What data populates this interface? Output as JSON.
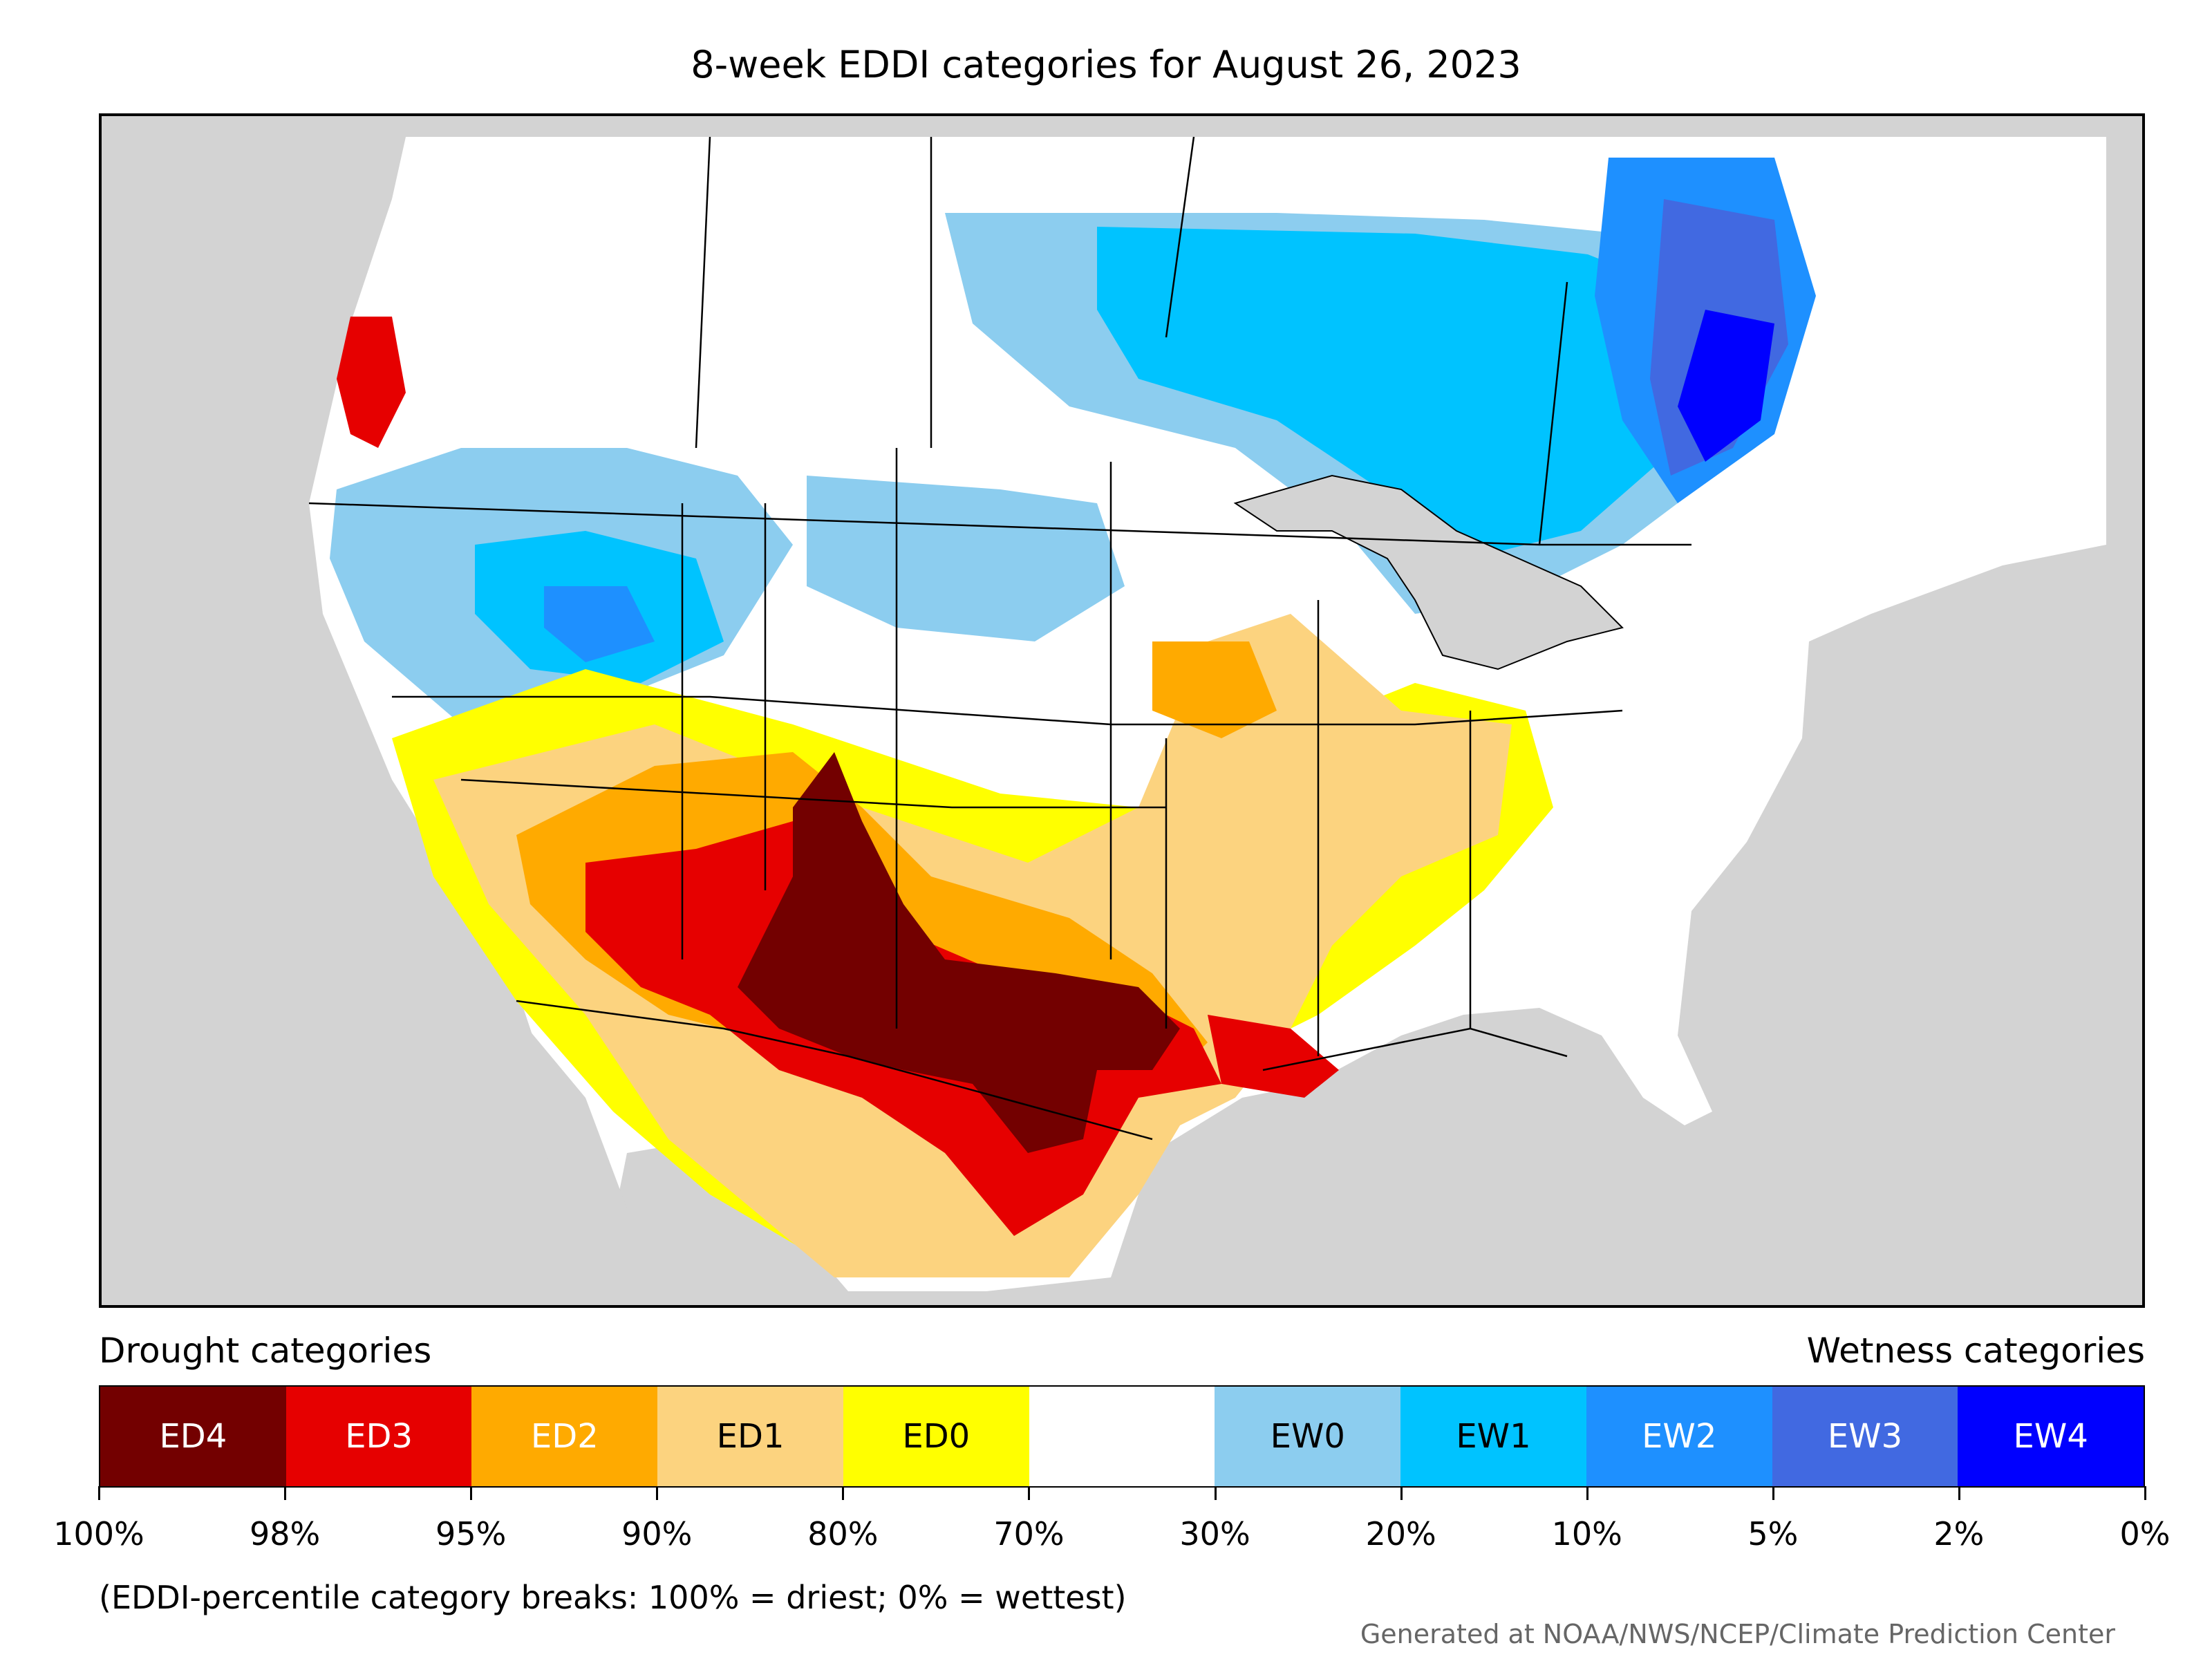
{
  "title": "8-week EDDI categories for August 26, 2023",
  "legend": {
    "drought_heading": "Drought categories",
    "wetness_heading": "Wetness categories",
    "categories": [
      {
        "label": "ED4",
        "color": "#730000",
        "text_color": "#ffffff"
      },
      {
        "label": "ED3",
        "color": "#e60000",
        "text_color": "#ffffff"
      },
      {
        "label": "ED2",
        "color": "#ffaa00",
        "text_color": "#ffffff"
      },
      {
        "label": "ED1",
        "color": "#fcd37f",
        "text_color": "#000000"
      },
      {
        "label": "ED0",
        "color": "#ffff00",
        "text_color": "#000000"
      },
      {
        "label": "",
        "color": "#ffffff",
        "text_color": "#000000"
      },
      {
        "label": "EW0",
        "color": "#8ccdef",
        "text_color": "#000000"
      },
      {
        "label": "EW1",
        "color": "#00c3ff",
        "text_color": "#000000"
      },
      {
        "label": "EW2",
        "color": "#1e90ff",
        "text_color": "#ffffff"
      },
      {
        "label": "EW3",
        "color": "#4169e1",
        "text_color": "#ffffff"
      },
      {
        "label": "EW4",
        "color": "#0000ff",
        "text_color": "#ffffff"
      }
    ],
    "ticks": [
      "100%",
      "98%",
      "95%",
      "90%",
      "80%",
      "70%",
      "30%",
      "20%",
      "10%",
      "5%",
      "2%",
      "0%"
    ]
  },
  "footnote": "(EDDI-percentile category breaks: 100% = driest; 0% = wettest)",
  "credit": "Generated at NOAA/NWS/NCEP/Climate Prediction Center",
  "map": {
    "background_color": "#d3d3d3",
    "boundary_color": "#000000"
  }
}
